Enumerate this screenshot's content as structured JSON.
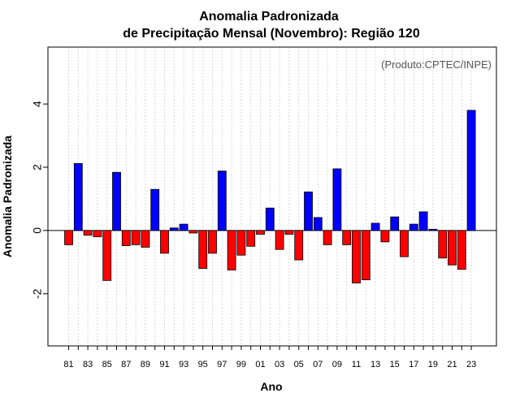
{
  "chart_data": {
    "type": "bar",
    "title": "Anomalia Padronizada",
    "subtitle": "de Precipitação Mensal (Novembro): Região 120",
    "xlabel": "Ano",
    "ylabel": "Anomalia Padronizada",
    "credit": "(Produto:CPTEC/INPE)",
    "ylim": [
      -3.65,
      5.8
    ],
    "yticks": [
      -2,
      0,
      2,
      4
    ],
    "ytick_labels": [
      "-2",
      "0",
      "2",
      "4"
    ],
    "x_tick_labels": [
      "81",
      "83",
      "85",
      "87",
      "89",
      "91",
      "93",
      "95",
      "97",
      "99",
      "01",
      "03",
      "05",
      "07",
      "09",
      "11",
      "13",
      "15",
      "17",
      "19",
      "21",
      "23"
    ],
    "categories": [
      "1981",
      "1982",
      "1983",
      "1984",
      "1985",
      "1986",
      "1987",
      "1988",
      "1989",
      "1990",
      "1991",
      "1992",
      "1993",
      "1994",
      "1995",
      "1996",
      "1997",
      "1998",
      "1999",
      "2000",
      "2001",
      "2002",
      "2003",
      "2004",
      "2005",
      "2006",
      "2007",
      "2008",
      "2009",
      "2010",
      "2011",
      "2012",
      "2013",
      "2014",
      "2015",
      "2016",
      "2017",
      "2018",
      "2019",
      "2020",
      "2021",
      "2022",
      "2023"
    ],
    "values": [
      -0.45,
      2.12,
      -0.15,
      -0.2,
      -1.58,
      1.84,
      -0.48,
      -0.45,
      -0.53,
      1.3,
      -0.72,
      0.08,
      0.2,
      -0.08,
      -1.2,
      -0.72,
      1.88,
      -1.25,
      -0.78,
      -0.5,
      -0.12,
      0.71,
      -0.6,
      -0.12,
      -0.93,
      1.22,
      0.41,
      -0.45,
      1.95,
      -0.45,
      -1.66,
      -1.56,
      0.23,
      -0.36,
      0.43,
      -0.83,
      0.2,
      0.59,
      0.04,
      -0.87,
      -1.09,
      -1.23,
      3.8
    ],
    "positive_color": "#0000ff",
    "negative_color": "#ff0000",
    "grid": "vertical dotted"
  }
}
